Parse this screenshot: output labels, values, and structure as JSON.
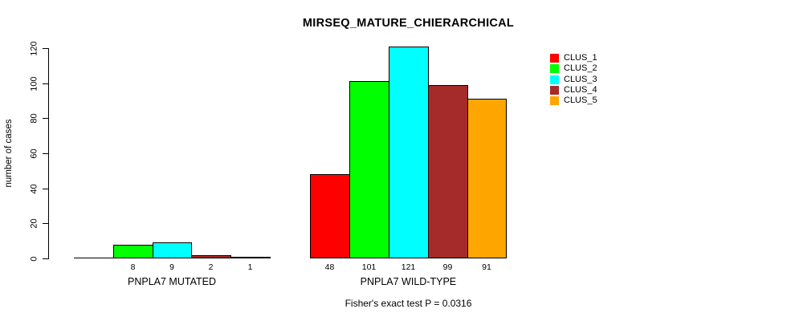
{
  "title": "MIRSEQ_MATURE_CHIERARCHICAL",
  "footer": "Fisher's exact test P = 0.0316",
  "ylabel": "number of cases",
  "chart_data": {
    "type": "bar",
    "title": "MIRSEQ_MATURE_CHIERARCHICAL",
    "xlabel": "",
    "ylabel": "number of cases",
    "categories": [
      "PNPLA7 MUTATED",
      "PNPLA7 WILD-TYPE"
    ],
    "series": [
      {
        "name": "CLUS_1",
        "color": "#ff0000",
        "values": [
          0,
          48
        ]
      },
      {
        "name": "CLUS_2",
        "color": "#00ff00",
        "values": [
          8,
          101
        ]
      },
      {
        "name": "CLUS_3",
        "color": "#00ffff",
        "values": [
          9,
          121
        ]
      },
      {
        "name": "CLUS_4",
        "color": "#a52a2a",
        "values": [
          2,
          99
        ]
      },
      {
        "name": "CLUS_5",
        "color": "#ffa500",
        "values": [
          1,
          91
        ]
      }
    ],
    "bar_value_labels": [
      [
        "",
        "8",
        "9",
        "2",
        "1"
      ],
      [
        "48",
        "101",
        "121",
        "99",
        "91"
      ]
    ],
    "yticks": [
      0,
      20,
      40,
      60,
      80,
      100,
      120
    ],
    "ylim": [
      0,
      120
    ],
    "grid": false,
    "legend_position": "top-right",
    "annotation": "Fisher's exact test P = 0.0316",
    "bar_border_color": "#000000"
  }
}
